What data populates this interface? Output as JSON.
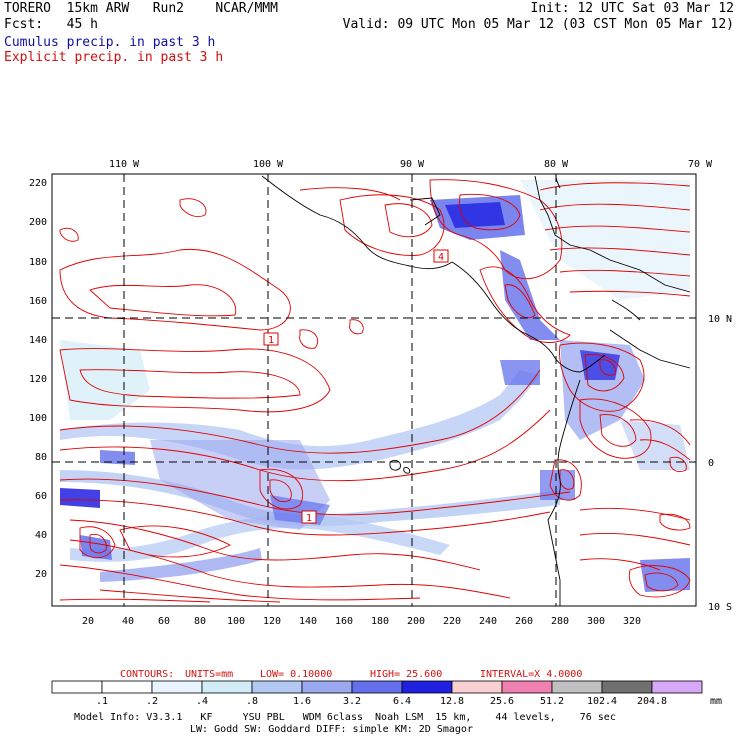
{
  "header": {
    "line1_left": "TORERO  15km ARW   Run2    NCAR/MMM",
    "line1_right": "Init: 12 UTC Sat 03 Mar 12",
    "line2_left": "Fcst:   45 h",
    "line2_right": "Valid: 09 UTC Mon 05 Mar 12 (03 CST Mon 05 Mar 12)",
    "line3": "Cumulus precip. in past 3 h",
    "line4": "Explicit precip. in past 3 h"
  },
  "colors": {
    "cumulus_text": "#1010a0",
    "explicit_text": "#d01010",
    "contour": "#e00000",
    "coast": "#000000"
  },
  "map": {
    "longitude_labels": [
      "110 W",
      "100 W",
      "90 W",
      "80 W",
      "70 W"
    ],
    "latitude_labels": [
      "10 N",
      "0",
      "10 S"
    ],
    "y_ticks": [
      "220",
      "200",
      "180",
      "160",
      "140",
      "120",
      "100",
      "80",
      "60",
      "40",
      "20"
    ],
    "x_ticks": [
      "20",
      "40",
      "60",
      "80",
      "100",
      "120",
      "140",
      "160",
      "180",
      "200",
      "220",
      "240",
      "260",
      "280",
      "300",
      "320"
    ],
    "contour_labels": [
      "1",
      "4",
      "1"
    ]
  },
  "contours_info": {
    "label": "CONTOURS:",
    "units": "UNITS=mm",
    "low": "LOW= 0.10000",
    "high": "HIGH=  25.600",
    "interval": "INTERVAL=X  4.0000"
  },
  "colorbar": {
    "levels": [
      ".1",
      ".2",
      ".4",
      ".8",
      "1.6",
      "3.2",
      "6.4",
      "12.8",
      "25.6",
      "51.2",
      "102.4",
      "204.8"
    ],
    "colors": [
      "#ffffff",
      "#ffffff",
      "#e8f4ff",
      "#d2ecf8",
      "#b4c8f4",
      "#9aa8f0",
      "#6470ec",
      "#2020e0",
      "#f8d0d0",
      "#f080b0",
      "#c0c0c0",
      "#707070",
      "#d8a8f8"
    ],
    "unit": "mm"
  },
  "footer": {
    "line1": "Model Info: V3.3.1   KF     YSU PBL   WDM 6class  Noah LSM  15 km,    44 levels,    76 sec",
    "line2": "LW: Godd SW: Goddard DIFF: simple KM: 2D Smagor"
  }
}
